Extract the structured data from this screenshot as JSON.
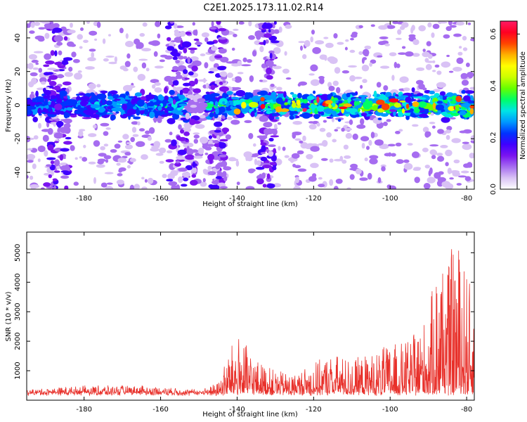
{
  "title": "C2E1.2025.173.11.02.R14",
  "colors": {
    "line": "#e8302a",
    "axis": "#000000",
    "colormap": [
      "#ffffff",
      "#d9c2f5",
      "#a66cf0",
      "#7b14f0",
      "#3f00ff",
      "#0033ff",
      "#0099ff",
      "#00e5e5",
      "#00ff66",
      "#66ff00",
      "#ccff00",
      "#ffff00",
      "#ffb000",
      "#ff4400",
      "#ff0022",
      "#ff1a66"
    ]
  },
  "chart_data": [
    {
      "type": "heatmap",
      "title": "C2E1.2025.173.11.02.R14",
      "xlabel": "Height of straight line (km)",
      "ylabel": "Frequency (Hz)",
      "xlim": [
        -195,
        -78
      ],
      "ylim": [
        -50,
        50
      ],
      "x_ticks": [
        "-180",
        "-160",
        "-140",
        "-120",
        "-100",
        "-80"
      ],
      "y_ticks": [
        "-40",
        "-20",
        "0",
        "20",
        "40"
      ],
      "description_band_center_hz": 0,
      "band_halfwidth_hz": 10,
      "colorbar": {
        "label": "Normalized spectral amplitude",
        "range": [
          0.0,
          0.65
        ],
        "ticks": [
          "0.0",
          "0.2",
          "0.4",
          "0.6"
        ]
      }
    },
    {
      "type": "line",
      "xlabel": "Height of straight line (km)",
      "ylabel": "SNR (10 * v/v)",
      "xlim": [
        -195,
        -78
      ],
      "ylim": [
        0,
        5700
      ],
      "x_ticks": [
        "-180",
        "-160",
        "-140",
        "-120",
        "-100",
        "-80"
      ],
      "y_ticks": [
        "1000",
        "2000",
        "3000",
        "4000",
        "5000"
      ],
      "envelope": {
        "x": [
          -195,
          -180,
          -165,
          -150,
          -145,
          -142,
          -140,
          -135,
          -130,
          -125,
          -120,
          -115,
          -110,
          -105,
          -100,
          -95,
          -90,
          -87,
          -85,
          -83,
          -81,
          -79,
          -78
        ],
        "y": [
          350,
          500,
          500,
          350,
          600,
          1700,
          2300,
          1400,
          1000,
          900,
          1300,
          1600,
          1400,
          1600,
          1900,
          2000,
          3000,
          5300,
          4500,
          5700,
          4900,
          3900,
          3600
        ]
      }
    }
  ],
  "colorbar_ticks": [
    "0.0",
    "0.2",
    "0.4",
    "0.6"
  ],
  "colorbar_label": "Normalized spectral amplitude"
}
